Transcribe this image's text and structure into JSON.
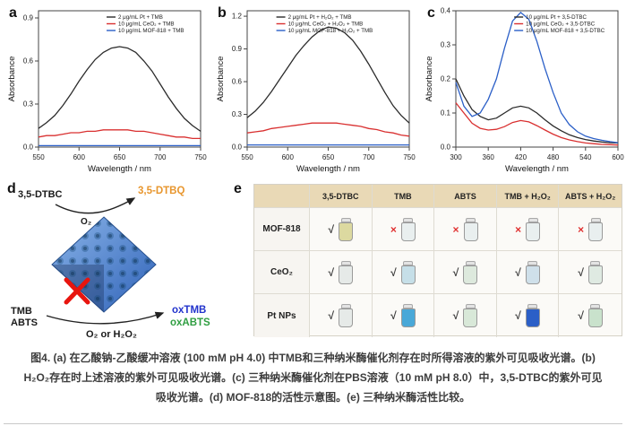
{
  "panels": [
    "a",
    "b",
    "c",
    "d",
    "e"
  ],
  "chart_data": [
    {
      "type": "line",
      "title": "",
      "xlabel": "Wavelength / nm",
      "ylabel": "Absorbance",
      "xlim": [
        550,
        750
      ],
      "ylim": [
        0,
        0.95
      ],
      "xticks": [
        550,
        600,
        650,
        700,
        750
      ],
      "yticks": [
        0.0,
        0.3,
        0.6,
        0.9
      ],
      "legend_pos": "top-right",
      "legend_x": 0.42,
      "x": [
        550,
        560,
        570,
        580,
        590,
        600,
        610,
        620,
        630,
        640,
        650,
        660,
        670,
        680,
        690,
        700,
        710,
        720,
        730,
        740,
        750
      ],
      "series": [
        {
          "name": "2 μg/mL Pt + TMB",
          "color": "#2b2b2b",
          "values": [
            0.13,
            0.17,
            0.22,
            0.29,
            0.37,
            0.46,
            0.54,
            0.61,
            0.66,
            0.69,
            0.7,
            0.69,
            0.66,
            0.6,
            0.53,
            0.44,
            0.35,
            0.27,
            0.2,
            0.15,
            0.11
          ]
        },
        {
          "name": "10 μg/mL CeO₂ + TMB",
          "color": "#d93030",
          "values": [
            0.07,
            0.08,
            0.08,
            0.09,
            0.1,
            0.1,
            0.11,
            0.11,
            0.12,
            0.12,
            0.12,
            0.12,
            0.11,
            0.11,
            0.1,
            0.09,
            0.08,
            0.07,
            0.07,
            0.06,
            0.06
          ]
        },
        {
          "name": "10 μg/mL MOF-818 + TMB",
          "color": "#2b5fc7",
          "values": [
            0.01,
            0.01,
            0.01,
            0.01,
            0.01,
            0.01,
            0.01,
            0.01,
            0.01,
            0.01,
            0.01,
            0.01,
            0.01,
            0.01,
            0.01,
            0.01,
            0.01,
            0.01,
            0.01,
            0.01,
            0.01
          ]
        }
      ]
    },
    {
      "type": "line",
      "title": "",
      "xlabel": "Wavelength / nm",
      "ylabel": "Absorbance",
      "xlim": [
        550,
        750
      ],
      "ylim": [
        0,
        1.25
      ],
      "xticks": [
        550,
        600,
        650,
        700,
        750
      ],
      "yticks": [
        0.0,
        0.3,
        0.6,
        0.9,
        1.2
      ],
      "legend_pos": "top-center",
      "legend_x": 0.18,
      "x": [
        550,
        560,
        570,
        580,
        590,
        600,
        610,
        620,
        630,
        640,
        650,
        660,
        670,
        680,
        690,
        700,
        710,
        720,
        730,
        740,
        750
      ],
      "series": [
        {
          "name": "2 μg/mL Pt + H₂O₂ + TMB",
          "color": "#2b2b2b",
          "values": [
            0.27,
            0.33,
            0.41,
            0.51,
            0.62,
            0.73,
            0.84,
            0.93,
            1.01,
            1.07,
            1.1,
            1.09,
            1.05,
            0.98,
            0.88,
            0.76,
            0.63,
            0.5,
            0.38,
            0.29,
            0.22
          ]
        },
        {
          "name": "10 μg/mL CeO₂ + H₂O₂ + TMB",
          "color": "#d93030",
          "values": [
            0.13,
            0.14,
            0.15,
            0.17,
            0.18,
            0.19,
            0.2,
            0.21,
            0.22,
            0.22,
            0.22,
            0.22,
            0.21,
            0.2,
            0.19,
            0.17,
            0.16,
            0.14,
            0.13,
            0.11,
            0.1
          ]
        },
        {
          "name": "10 μg/mL MOF-818 + H₂O₂ + TMB",
          "color": "#2b5fc7",
          "values": [
            0.02,
            0.02,
            0.02,
            0.02,
            0.02,
            0.02,
            0.02,
            0.02,
            0.02,
            0.02,
            0.02,
            0.02,
            0.02,
            0.02,
            0.02,
            0.02,
            0.02,
            0.02,
            0.02,
            0.02,
            0.02
          ]
        }
      ]
    },
    {
      "type": "line",
      "title": "",
      "xlabel": "Wavelength / nm",
      "ylabel": "Absorbance",
      "xlim": [
        300,
        600
      ],
      "ylim": [
        0,
        0.4
      ],
      "xticks": [
        300,
        360,
        420,
        480,
        540,
        600
      ],
      "yticks": [
        0.0,
        0.1,
        0.2,
        0.3,
        0.4
      ],
      "legend_pos": "top-right",
      "legend_x": 0.36,
      "x": [
        300,
        315,
        330,
        345,
        360,
        375,
        390,
        405,
        420,
        435,
        450,
        465,
        480,
        495,
        510,
        525,
        540,
        555,
        570,
        585,
        600
      ],
      "series": [
        {
          "name": "10 μg/mL Pt + 3,5-DTBC",
          "color": "#2b2b2b",
          "values": [
            0.2,
            0.15,
            0.11,
            0.09,
            0.08,
            0.085,
            0.1,
            0.115,
            0.12,
            0.115,
            0.1,
            0.08,
            0.062,
            0.048,
            0.036,
            0.028,
            0.022,
            0.018,
            0.015,
            0.013,
            0.012
          ]
        },
        {
          "name": "10 μg/mL CeO₂ + 3,5-DTBC",
          "color": "#d93030",
          "values": [
            0.13,
            0.1,
            0.07,
            0.055,
            0.05,
            0.052,
            0.06,
            0.072,
            0.078,
            0.074,
            0.063,
            0.05,
            0.038,
            0.028,
            0.021,
            0.016,
            0.012,
            0.01,
            0.008,
            0.007,
            0.006
          ]
        },
        {
          "name": "10 μg/mL MOF-818 + 3,5-DTBC",
          "color": "#2b5fc7",
          "values": [
            0.19,
            0.12,
            0.09,
            0.1,
            0.14,
            0.2,
            0.29,
            0.37,
            0.395,
            0.375,
            0.31,
            0.23,
            0.16,
            0.1,
            0.066,
            0.045,
            0.032,
            0.025,
            0.02,
            0.016,
            0.013
          ]
        }
      ]
    }
  ],
  "diagram": {
    "substrate_top": "3,5-DTBC",
    "product_top": "3,5-DTBQ",
    "oxidant_top": "O₂",
    "substrate_bottom1": "TMB",
    "substrate_bottom2": "ABTS",
    "oxidant_bottom": "O₂ or H₂O₂",
    "product_bottom1": "oxTMB",
    "product_bottom2": "oxABTS",
    "colors": {
      "product_top": "#e8962e",
      "product_bottom1": "#2233cc",
      "product_bottom2": "#2f9e41",
      "cross": "#e8150f"
    }
  },
  "table": {
    "header_bg": "#e9d9b6",
    "columns": [
      "3,5-DTBC",
      "TMB",
      "ABTS",
      "TMB + H₂O₂",
      "ABTS + H₂O₂"
    ],
    "rows": [
      {
        "label": "MOF-818",
        "cells": [
          {
            "mark": "√",
            "mark_color": "#3a3a3a",
            "vial": "#dcd9a0"
          },
          {
            "mark": "×",
            "mark_color": "#e03030",
            "vial": "#e9efef"
          },
          {
            "mark": "×",
            "mark_color": "#e03030",
            "vial": "#e9efef"
          },
          {
            "mark": "×",
            "mark_color": "#e03030",
            "vial": "#e9efef"
          },
          {
            "mark": "×",
            "mark_color": "#e03030",
            "vial": "#e9efef"
          }
        ]
      },
      {
        "label": "CeO₂",
        "cells": [
          {
            "mark": "√",
            "mark_color": "#3a3a3a",
            "vial": "#e6eae8"
          },
          {
            "mark": "√",
            "mark_color": "#3a3a3a",
            "vial": "#c6dfe8"
          },
          {
            "mark": "√",
            "mark_color": "#3a3a3a",
            "vial": "#dde9dd"
          },
          {
            "mark": "√",
            "mark_color": "#3a3a3a",
            "vial": "#cfe0ea"
          },
          {
            "mark": "√",
            "mark_color": "#3a3a3a",
            "vial": "#dfeae2"
          }
        ]
      },
      {
        "label": "Pt NPs",
        "cells": [
          {
            "mark": "√",
            "mark_color": "#3a3a3a",
            "vial": "#e6eae8"
          },
          {
            "mark": "√",
            "mark_color": "#3a3a3a",
            "vial": "#49a8d8"
          },
          {
            "mark": "√",
            "mark_color": "#3a3a3a",
            "vial": "#d8e8d8"
          },
          {
            "mark": "√",
            "mark_color": "#3a3a3a",
            "vial": "#2b5fc7"
          },
          {
            "mark": "√",
            "mark_color": "#3a3a3a",
            "vial": "#c9e2cc"
          }
        ]
      }
    ]
  },
  "caption": {
    "line1": "图4. (a) 在乙酸钠-乙酸缓冲溶液 (100 mM pH 4.0) 中TMB和三种纳米酶催化剂存在时所得溶液的紫外可见吸收光谱。(b)",
    "line2": "H₂O₂存在时上述溶液的紫外可见吸收光谱。(c) 三种纳米酶催化剂在PBS溶液（10 mM pH 8.0）中，3,5-DTBC的紫外可见",
    "line3": "吸收光谱。(d) MOF-818的活性示意图。(e) 三种纳米酶活性比较。"
  }
}
